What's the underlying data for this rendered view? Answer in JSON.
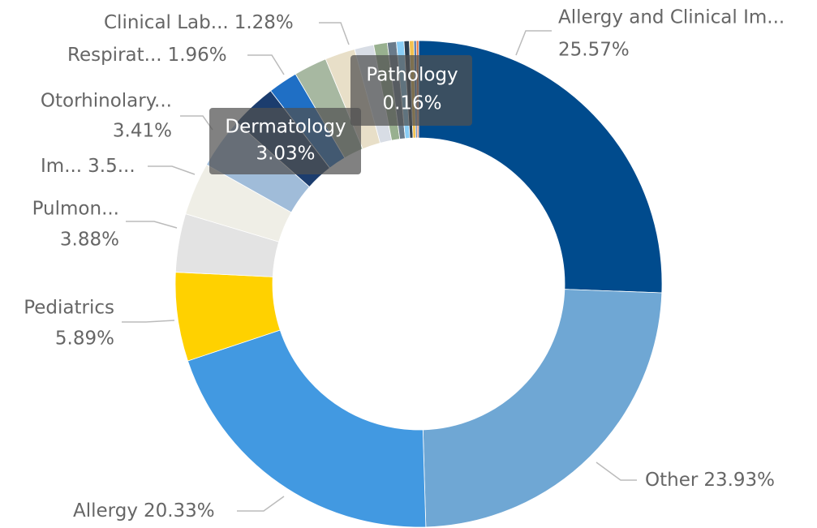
{
  "chart_data": {
    "type": "donut",
    "categories": [
      "Allergy and Clinical Im...",
      "Other",
      "Allergy",
      "Pediatrics",
      "Pulmon...",
      "Im...",
      "Otorhinolary...",
      "Dermatology",
      "Respirat...",
      null,
      null,
      "Clinical Lab...",
      null,
      null,
      null,
      null,
      null,
      "Pathology",
      null
    ],
    "values": [
      25.57,
      23.93,
      20.33,
      5.89,
      3.88,
      3.5,
      3.41,
      3.03,
      1.96,
      2.2,
      2.0,
      1.28,
      0.9,
      0.6,
      0.5,
      0.35,
      0.3,
      0.16,
      0.15
    ],
    "value_labels": [
      "25.57%",
      "23.93%",
      "20.33%",
      "5.89%",
      "3.88%",
      "3.5...",
      "3.41%",
      "3.03%",
      "1.96%",
      null,
      null,
      "1.28%",
      null,
      null,
      null,
      null,
      null,
      "0.16%",
      null
    ],
    "colors": [
      "#004b8d",
      "#6fa7d4",
      "#4299e1",
      "#ffd100",
      "#e3e3e3",
      "#efeee6",
      "#a0bcd9",
      "#1c3d6e",
      "#1f6fc5",
      "#a7b8a1",
      "#e8dfc8",
      "#d8dde5",
      "#98b08f",
      "#6a7b8b",
      "#89cdf5",
      "#2c3e50",
      "#f2c14e",
      "#4a6fa5",
      "#e8743b"
    ]
  }
}
